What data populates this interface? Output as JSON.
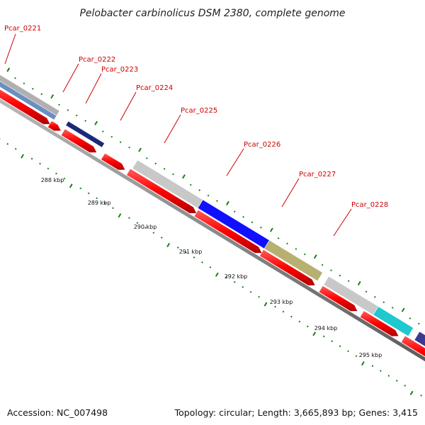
{
  "title": "Pelobacter carbinolicus DSM 2380, complete genome",
  "footer": {
    "accession": "Accession: NC_007498",
    "summary": "Topology: circular; Length: 3,665,893 bp; Genes: 3,415"
  },
  "colors": {
    "cds": "#ff0000",
    "label": "#cc0000",
    "tick": "#1a7f1a",
    "backbone": "#888888"
  },
  "gene_labels": [
    {
      "id": "Pcar_0221",
      "text": "Pcar_0221"
    },
    {
      "id": "Pcar_0222",
      "text": "Pcar_0222"
    },
    {
      "id": "Pcar_0223",
      "text": "Pcar_0223"
    },
    {
      "id": "Pcar_0224",
      "text": "Pcar_0224"
    },
    {
      "id": "Pcar_0225",
      "text": "Pcar_0225"
    },
    {
      "id": "Pcar_0226",
      "text": "Pcar_0226"
    },
    {
      "id": "Pcar_0227",
      "text": "Pcar_0227"
    },
    {
      "id": "Pcar_0228",
      "text": "Pcar_0228"
    }
  ],
  "kbp_labels": [
    "288 kbp",
    "289 kbp",
    "290 kbp",
    "291 kbp",
    "292 kbp",
    "293 kbp",
    "294 kbp",
    "295 kbp"
  ],
  "cog_colors": [
    "#b0b0b0",
    "#6a8fc0",
    "#1a2a7a",
    "#c8c8c8",
    "#1010ff",
    "#b8b070",
    "#c8c8c8",
    "#20c8d0",
    "#3a3a90",
    "#6a8fc0"
  ]
}
